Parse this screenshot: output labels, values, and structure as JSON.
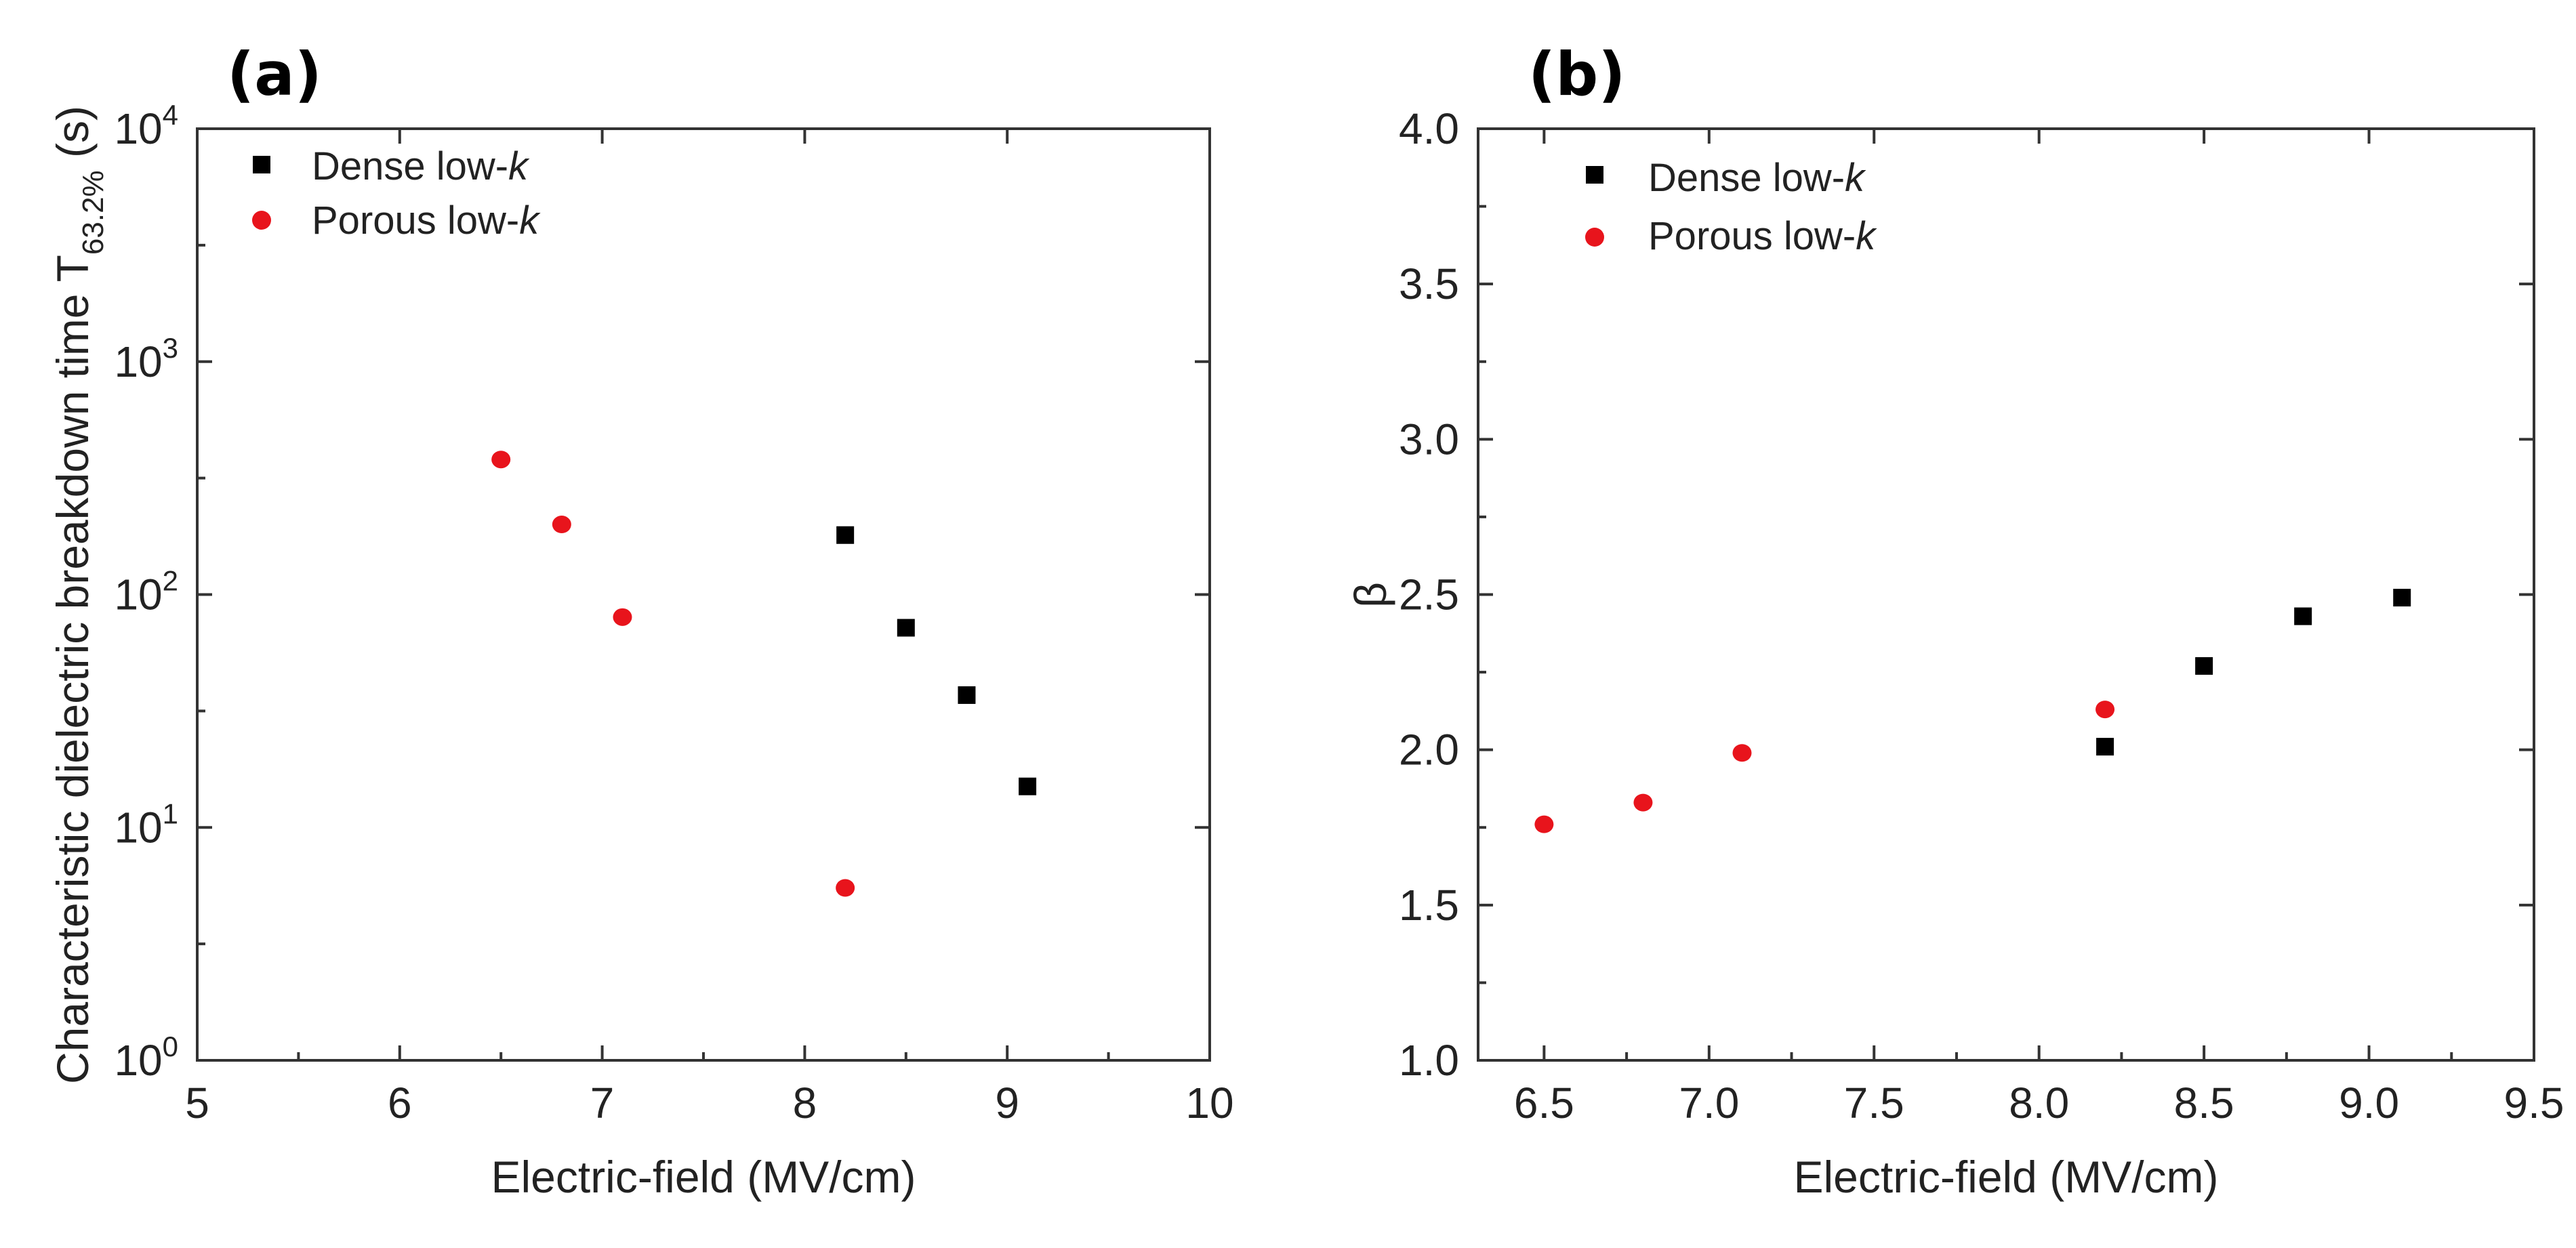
{
  "chart_data": [
    {
      "panel": "(a)",
      "type": "scatter",
      "xlabel": "Electric-field (MV/cm)",
      "ylabel_main": "Characteristic dielectric breakdown time T",
      "ylabel_subscript": "63.2%",
      "ylabel_unit": "(s)",
      "xlim": [
        5,
        10
      ],
      "ylim": [
        1,
        10000
      ],
      "yscale": "log",
      "xticks": [
        5,
        6,
        7,
        8,
        9,
        10
      ],
      "xtick_labels": [
        "5",
        "6",
        "7",
        "8",
        "9",
        "10"
      ],
      "yticks": [
        1,
        10,
        100,
        1000,
        10000
      ],
      "ytick_exponents": [
        "0",
        "1",
        "2",
        "3",
        "4"
      ],
      "ytick_base": "10",
      "legend_position": "top-left",
      "series": [
        {
          "name_prefix": "Dense low-",
          "name_italic": "k",
          "marker": "square",
          "color": "#000000",
          "x": [
            8.2,
            8.5,
            8.8,
            9.1
          ],
          "y": [
            180,
            72,
            37,
            15
          ]
        },
        {
          "name_prefix": "Porous low-",
          "name_italic": "k",
          "marker": "circle",
          "color": "#e8141c",
          "x": [
            6.5,
            6.8,
            7.1,
            8.2
          ],
          "y": [
            380,
            200,
            80,
            5.5
          ]
        }
      ]
    },
    {
      "panel": "(b)",
      "type": "scatter",
      "xlabel": "Electric-field (MV/cm)",
      "ylabel": "β",
      "xlim": [
        6.3,
        9.5
      ],
      "ylim": [
        1.0,
        4.0
      ],
      "yscale": "linear",
      "xticks": [
        6.5,
        7.0,
        7.5,
        8.0,
        8.5,
        9.0,
        9.5
      ],
      "xtick_labels": [
        "6.5",
        "7.0",
        "7.5",
        "8.0",
        "8.5",
        "9.0",
        "9.5"
      ],
      "yticks": [
        1.0,
        1.5,
        2.0,
        2.5,
        3.0,
        3.5,
        4.0
      ],
      "ytick_labels": [
        "1.0",
        "1.5",
        "2.0",
        "2.5",
        "3.0",
        "3.5",
        "4.0"
      ],
      "legend_position": "top-left",
      "series": [
        {
          "name_prefix": "Dense low-",
          "name_italic": "k",
          "marker": "square",
          "color": "#000000",
          "x": [
            8.2,
            8.5,
            8.8,
            9.1
          ],
          "y": [
            2.01,
            2.27,
            2.43,
            2.49
          ]
        },
        {
          "name_prefix": "Porous low-",
          "name_italic": "k",
          "marker": "circle",
          "color": "#e8141c",
          "x": [
            6.5,
            6.8,
            7.1,
            8.2
          ],
          "y": [
            1.76,
            1.83,
            1.99,
            2.13
          ]
        }
      ]
    }
  ]
}
